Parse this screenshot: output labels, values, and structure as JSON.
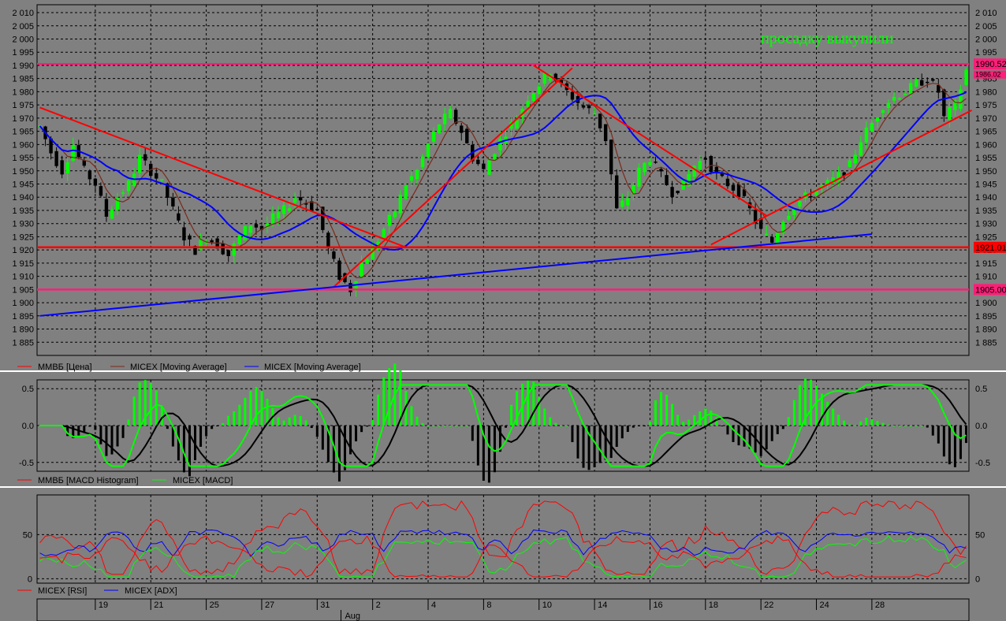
{
  "annotation": "просадку выкупили",
  "colors": {
    "background": "#808080",
    "candle_up": "#00ff00",
    "candle_down": "#000000",
    "ma_fast": "#7a2a1a",
    "ma_slow": "#0000ff",
    "trend_lines": "#ff0000",
    "level_lines": "#ff1e78",
    "support_blue": "#0000ff",
    "macd_line": "#000000",
    "macd_signal": "#00ff00",
    "rsi": "#ff0000",
    "adx": "#0000ff",
    "dmi_plus": "#00ff00",
    "dmi_minus": "#ff0000"
  },
  "chart_data": [
    {
      "type": "line",
      "panel": "price",
      "ylim": [
        1880,
        2013
      ],
      "y_ticks": [
        "2 010",
        "2 005",
        "2 000",
        "1 995",
        "1 990",
        "1 985",
        "1 980",
        "1 975",
        "1 970",
        "1 965",
        "1 960",
        "1 955",
        "1 950",
        "1 945",
        "1 940",
        "1 935",
        "1 930",
        "1 925",
        "1 920",
        "1 915",
        "1 910",
        "1 905",
        "1 900",
        "1 895",
        "1 890",
        "1 885"
      ],
      "y_tick_values": [
        2010,
        2005,
        2000,
        1995,
        1990,
        1985,
        1980,
        1975,
        1970,
        1965,
        1960,
        1955,
        1950,
        1945,
        1940,
        1935,
        1930,
        1925,
        1920,
        1915,
        1910,
        1905,
        1900,
        1895,
        1890,
        1885
      ],
      "levels": [
        {
          "value": 1990.52,
          "label": "1990.52",
          "color": "#ff1e78"
        },
        {
          "value": 1921.01,
          "label": "1921.01",
          "color": "#ff0000"
        },
        {
          "value": 1905.0,
          "label": "1905.00",
          "color": "#ff1e78"
        }
      ],
      "second_price_label": "1986.02",
      "close_anchors": [
        [
          0,
          1967
        ],
        [
          2,
          1957
        ],
        [
          4,
          1950
        ],
        [
          6,
          1960
        ],
        [
          8,
          1950
        ],
        [
          10,
          1945
        ],
        [
          12,
          1933
        ],
        [
          14,
          1940
        ],
        [
          16,
          1945
        ],
        [
          18,
          1955
        ],
        [
          20,
          1950
        ],
        [
          22,
          1945
        ],
        [
          24,
          1935
        ],
        [
          26,
          1925
        ],
        [
          28,
          1920
        ],
        [
          30,
          1925
        ],
        [
          32,
          1922
        ],
        [
          34,
          1918
        ],
        [
          36,
          1925
        ],
        [
          38,
          1930
        ],
        [
          40,
          1928
        ],
        [
          42,
          1932
        ],
        [
          44,
          1935
        ],
        [
          46,
          1940
        ],
        [
          48,
          1938
        ],
        [
          50,
          1935
        ],
        [
          52,
          1920
        ],
        [
          54,
          1910
        ],
        [
          56,
          1905
        ],
        [
          58,
          1915
        ],
        [
          60,
          1920
        ],
        [
          62,
          1928
        ],
        [
          64,
          1935
        ],
        [
          66,
          1945
        ],
        [
          68,
          1950
        ],
        [
          70,
          1960
        ],
        [
          72,
          1968
        ],
        [
          74,
          1972
        ],
        [
          76,
          1965
        ],
        [
          78,
          1955
        ],
        [
          80,
          1950
        ],
        [
          82,
          1958
        ],
        [
          84,
          1965
        ],
        [
          86,
          1970
        ],
        [
          88,
          1978
        ],
        [
          90,
          1983
        ],
        [
          92,
          1988
        ],
        [
          94,
          1982
        ],
        [
          96,
          1978
        ],
        [
          98,
          1974
        ],
        [
          100,
          1972
        ],
        [
          102,
          1962
        ],
        [
          104,
          1935
        ],
        [
          106,
          1940
        ],
        [
          108,
          1950
        ],
        [
          110,
          1955
        ],
        [
          112,
          1948
        ],
        [
          114,
          1942
        ],
        [
          116,
          1945
        ],
        [
          118,
          1952
        ],
        [
          120,
          1955
        ],
        [
          122,
          1948
        ],
        [
          124,
          1945
        ],
        [
          126,
          1942
        ],
        [
          128,
          1935
        ],
        [
          130,
          1927
        ],
        [
          132,
          1923
        ],
        [
          134,
          1932
        ],
        [
          136,
          1937
        ],
        [
          138,
          1940
        ],
        [
          140,
          1943
        ],
        [
          142,
          1945
        ],
        [
          144,
          1948
        ],
        [
          146,
          1952
        ],
        [
          148,
          1962
        ],
        [
          150,
          1968
        ],
        [
          152,
          1975
        ],
        [
          154,
          1978
        ],
        [
          156,
          1980
        ],
        [
          158,
          1983
        ],
        [
          160,
          1985
        ],
        [
          162,
          1980
        ],
        [
          163,
          1970
        ],
        [
          165,
          1975
        ],
        [
          167,
          1988
        ]
      ],
      "series": [
        {
          "name": "ММВБ [Цена]",
          "color": "#ff0000"
        },
        {
          "name": "MICEX [Moving Average]",
          "color": "#7a2a1a"
        },
        {
          "name": "MICEX [Moving Average]",
          "color": "#0000ff"
        }
      ]
    },
    {
      "type": "bar",
      "panel": "macd",
      "ylim": [
        -0.62,
        0.62
      ],
      "y_ticks": [
        "0.5",
        "0.0",
        "-0.5"
      ],
      "y_tick_values": [
        0.5,
        0.0,
        -0.5
      ],
      "series": [
        {
          "name": "ММВБ [MACD Histogram]",
          "color": "#ff0000"
        },
        {
          "name": "MICEX [MACD]",
          "color": "#00ff00"
        }
      ]
    },
    {
      "type": "line",
      "panel": "rsi_adx",
      "ylim": [
        -5,
        95
      ],
      "y_ticks": [
        "50",
        "0"
      ],
      "y_tick_values": [
        50,
        0
      ],
      "series": [
        {
          "name": "MICEX [RSI]",
          "color": "#ff0000"
        },
        {
          "name": "MICEX [ADX]",
          "color": "#0000ff"
        }
      ]
    }
  ],
  "x_axis": {
    "ticks": [
      {
        "label": "19",
        "bar": 10
      },
      {
        "label": "21",
        "bar": 20
      },
      {
        "label": "25",
        "bar": 30
      },
      {
        "label": "27",
        "bar": 40
      },
      {
        "label": "31",
        "bar": 50
      },
      {
        "label": "2",
        "bar": 60
      },
      {
        "label": "4",
        "bar": 70
      },
      {
        "label": "8",
        "bar": 80
      },
      {
        "label": "10",
        "bar": 90
      },
      {
        "label": "14",
        "bar": 100
      },
      {
        "label": "16",
        "bar": 110
      },
      {
        "label": "18",
        "bar": 120
      },
      {
        "label": "22",
        "bar": 130
      },
      {
        "label": "24",
        "bar": 140
      },
      {
        "label": "28",
        "bar": 150
      }
    ],
    "month_label": "Aug",
    "month_bar": 55
  }
}
